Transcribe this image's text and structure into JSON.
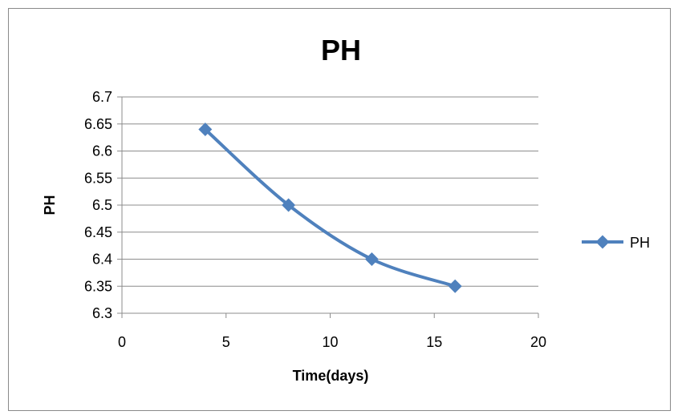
{
  "chart_data": {
    "type": "line",
    "title": "PH",
    "xlabel": "Time(days)",
    "ylabel": "PH",
    "xlim": [
      0,
      20
    ],
    "ylim": [
      6.3,
      6.7
    ],
    "xticks": [
      "0",
      "5",
      "10",
      "15",
      "20"
    ],
    "yticks": [
      "6.3",
      "6.35",
      "6.4",
      "6.45",
      "6.5",
      "6.55",
      "6.6",
      "6.65",
      "6.7"
    ],
    "grid": "horizontal",
    "legend_position": "right",
    "series": [
      {
        "name": "PH",
        "color": "#4f81bd",
        "marker": "diamond",
        "smooth": true,
        "x": [
          4,
          8,
          12,
          16
        ],
        "y": [
          6.64,
          6.5,
          6.4,
          6.35
        ]
      }
    ]
  }
}
